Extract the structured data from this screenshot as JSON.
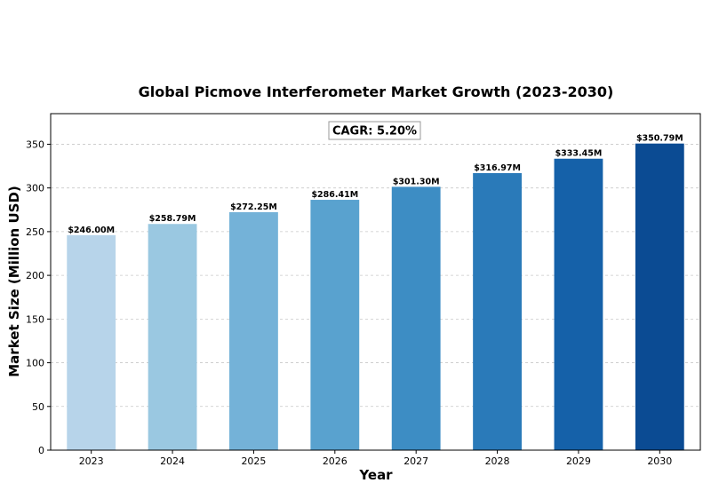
{
  "chart_data": {
    "type": "bar",
    "title": "Global Picmove Interferometer Market Growth (2023-2030)",
    "xlabel": "Year",
    "ylabel": "Market Size (Million USD)",
    "categories": [
      "2023",
      "2024",
      "2025",
      "2026",
      "2027",
      "2028",
      "2029",
      "2030"
    ],
    "values": [
      246.0,
      258.79,
      272.25,
      286.41,
      301.3,
      316.97,
      333.45,
      350.79
    ],
    "data_labels": [
      "$246.00M",
      "$258.79M",
      "$272.25M",
      "$286.41M",
      "$301.30M",
      "$316.97M",
      "$333.45M",
      "$350.79M"
    ],
    "bar_colors": [
      "#b7d4ea",
      "#9ac8e1",
      "#74b2d8",
      "#59a2cf",
      "#3d8dc4",
      "#2a7ab9",
      "#1561a9",
      "#0b4b93"
    ],
    "ylim": [
      0,
      385
    ],
    "yticks": [
      0,
      50,
      100,
      150,
      200,
      250,
      300,
      350
    ],
    "grid": "y-dashed",
    "annotation": "CAGR: 5.20%"
  }
}
